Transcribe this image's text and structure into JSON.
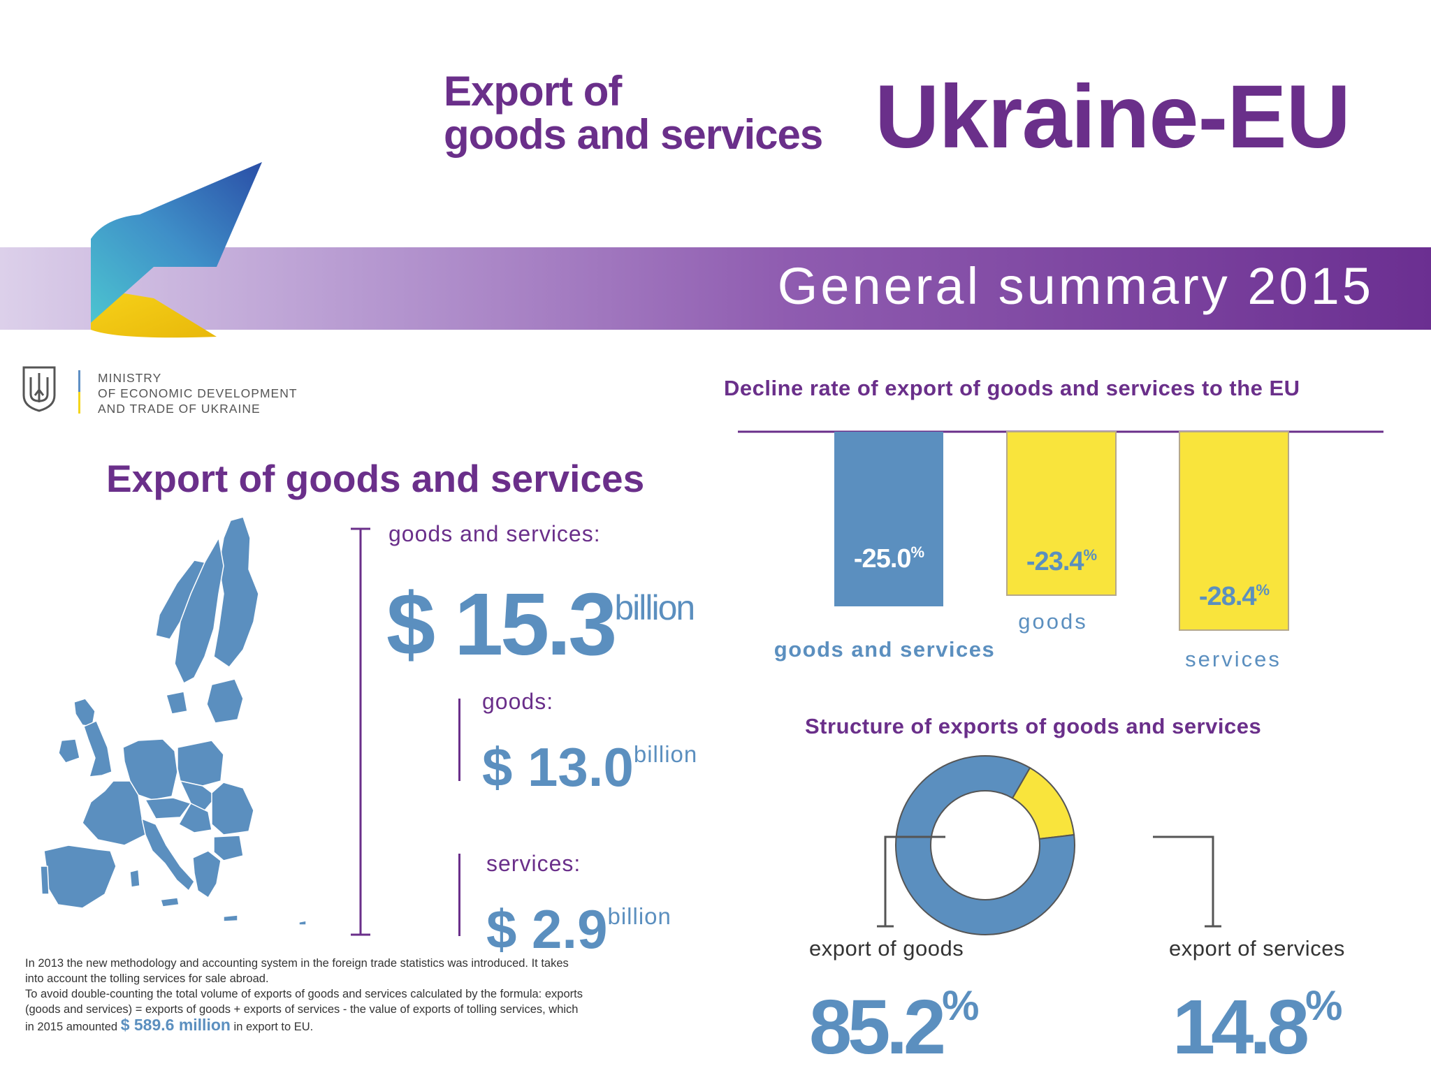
{
  "header": {
    "title_line1": "Export of",
    "title_line2": "goods and services",
    "title_main": "Ukraine-EU",
    "banner": "General summary 2015"
  },
  "ministry": {
    "line1": "MINISTRY",
    "line2": "OF ECONOMIC DEVELOPMENT",
    "line3": "AND TRADE OF UKRAINE"
  },
  "export_section": {
    "heading": "Export of goods and services",
    "total_label": "goods and services:",
    "total_value": "$ 15.3",
    "goods_label": "goods:",
    "goods_value": "$ 13.0",
    "services_label": "services:",
    "services_value": "$ 2.9",
    "unit": "billion"
  },
  "footnote": {
    "line1": "In 2013 the new methodology and accounting system in the foreign trade statistics was introduced. It takes",
    "line2": "into account the tolling services for sale abroad.",
    "line3": "To avoid double-counting the total volume of exports of goods and services calculated by the formula: exports",
    "line4": "(goods and services) = exports of goods + exports of services - the value of exports of tolling services, which",
    "line5_pre": "in 2015 amounted",
    "line5_highlight": "$ 589.6 million",
    "line5_post": "in export to EU."
  },
  "colors": {
    "purple": "#6a2f8a",
    "blue": "#5b8fbf",
    "yellow": "#f9e43c",
    "yellow_border": "#b5a88a"
  },
  "chart_data": [
    {
      "type": "bar",
      "title": "Decline rate of export of goods and services to the EU",
      "categories": [
        "goods and services",
        "goods",
        "services"
      ],
      "values": [
        -25.0,
        -23.4,
        -28.4
      ],
      "value_labels": [
        "-25.0",
        "-23.4",
        "-28.4"
      ],
      "unit": "%",
      "colors": [
        "#5b8fbf",
        "#f9e43c",
        "#f9e43c"
      ],
      "ylim": [
        -30,
        0
      ]
    },
    {
      "type": "pie",
      "subtype": "donut",
      "title": "Structure of exports of goods and services",
      "labels": [
        "export of goods",
        "export of services"
      ],
      "values": [
        85.2,
        14.8
      ],
      "value_labels": [
        "85.2",
        "14.8"
      ],
      "unit": "%",
      "colors": [
        "#5b8fbf",
        "#f9e43c"
      ]
    }
  ]
}
